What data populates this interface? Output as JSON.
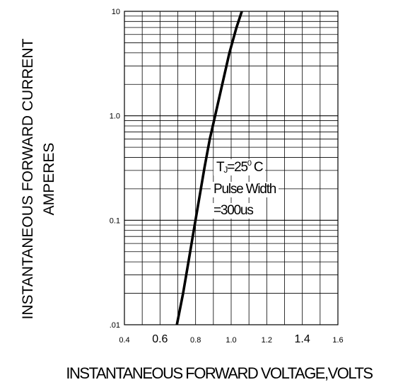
{
  "chart_data": {
    "type": "line",
    "xlabel": "INSTANTANEOUS FORWARD VOLTAGE,VOLTS",
    "ylabel_line1": "INSTANTANEOUS FORWARD CURRENT",
    "ylabel_line2": "AMPERES",
    "xlim": [
      0.4,
      1.6
    ],
    "ylim": [
      0.01,
      10
    ],
    "yscale": "log",
    "grid": true,
    "xticks": [
      {
        "value": 0.4,
        "label": "0.4",
        "big": false
      },
      {
        "value": 0.6,
        "label": "0.6",
        "big": true
      },
      {
        "value": 0.8,
        "label": "0.8",
        "big": false
      },
      {
        "value": 1.0,
        "label": "1.0",
        "big": false
      },
      {
        "value": 1.2,
        "label": "1.2",
        "big": false
      },
      {
        "value": 1.4,
        "label": "1.4",
        "big": true
      },
      {
        "value": 1.6,
        "label": "1.6",
        "big": false
      }
    ],
    "yticks": [
      {
        "value": 10,
        "label": "10"
      },
      {
        "value": 1,
        "label": "1.0"
      },
      {
        "value": 0.1,
        "label": "0.1"
      },
      {
        "value": 0.01,
        "label": ".01"
      }
    ],
    "series": [
      {
        "x": [
          0.695,
          0.73,
          0.76,
          0.79,
          0.82,
          0.85,
          0.88,
          0.91,
          0.95,
          0.99,
          1.03,
          1.06
        ],
        "y": [
          0.01,
          0.02,
          0.04,
          0.08,
          0.16,
          0.32,
          0.6,
          1.0,
          2.0,
          4.0,
          7.0,
          10.0
        ]
      }
    ],
    "annotation": {
      "line1_main": "T",
      "line1_sub": "J",
      "line1_mid": "=25",
      "line1_sup": "0",
      "line1_end": " C",
      "line2": "Pulse Width",
      "line3": "=300us"
    }
  }
}
